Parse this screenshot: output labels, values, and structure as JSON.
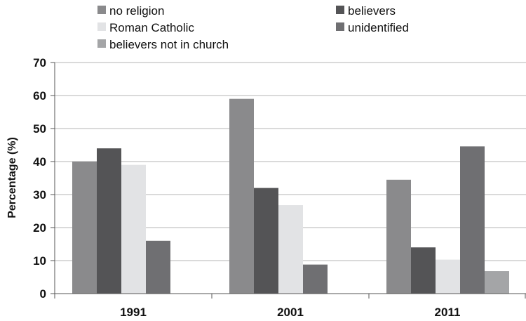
{
  "chart_data": {
    "type": "bar",
    "title": "",
    "xlabel": "",
    "ylabel": "Percentage (%)",
    "ylim": [
      0,
      70
    ],
    "yticks": [
      0,
      10,
      20,
      30,
      40,
      50,
      60,
      70
    ],
    "categories": [
      "1991",
      "2001",
      "2011"
    ],
    "grid": true,
    "legend_position": "top",
    "series": [
      {
        "name": "no religion",
        "color": "#8a8a8c",
        "values": [
          40,
          59,
          34.5
        ]
      },
      {
        "name": "believers",
        "color": "#545456",
        "values": [
          44,
          32,
          14
        ]
      },
      {
        "name": "Roman Catholic",
        "color": "#e2e3e5",
        "values": [
          39,
          26.8,
          10.3
        ]
      },
      {
        "name": "unidentified",
        "color": "#6f6f72",
        "values": [
          16,
          8.8,
          44.6
        ]
      },
      {
        "name": "believers not in church",
        "color": "#a4a5a7",
        "values": [
          null,
          null,
          6.8
        ]
      }
    ]
  }
}
